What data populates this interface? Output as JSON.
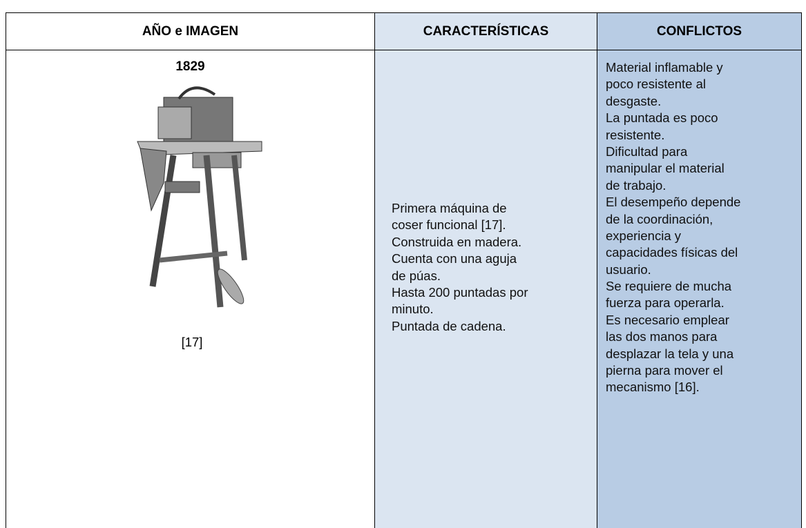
{
  "table": {
    "headers": [
      "AÑO e IMAGEN",
      "CARACTERÍSTICAS",
      "CONFLICTOS"
    ],
    "rows": [
      {
        "year": "1829",
        "image_caption": "[17]",
        "caracteristicas": [
          "Primera máquina de",
          "coser funcional [17].",
          "Construida en madera.",
          "Cuenta con una aguja",
          "de púas.",
          "Hasta 200 puntadas por",
          "minuto.",
          "Puntada de cadena."
        ],
        "conflictos": [
          "Material inflamable y",
          "poco resistente al",
          "desgaste.",
          "La puntada es poco",
          "resistente.",
          "Dificultad para",
          "manipular el material",
          "de trabajo.",
          "El desempeño depende",
          "de la coordinación,",
          "experiencia y",
          "capacidades físicas del",
          "usuario.",
          "Se requiere de mucha",
          "fuerza para operarla.",
          "Es necesario emplear",
          "las dos manos para",
          "desplazar la tela y una",
          "pierna para mover el",
          "mecanismo [16]."
        ]
      }
    ]
  }
}
